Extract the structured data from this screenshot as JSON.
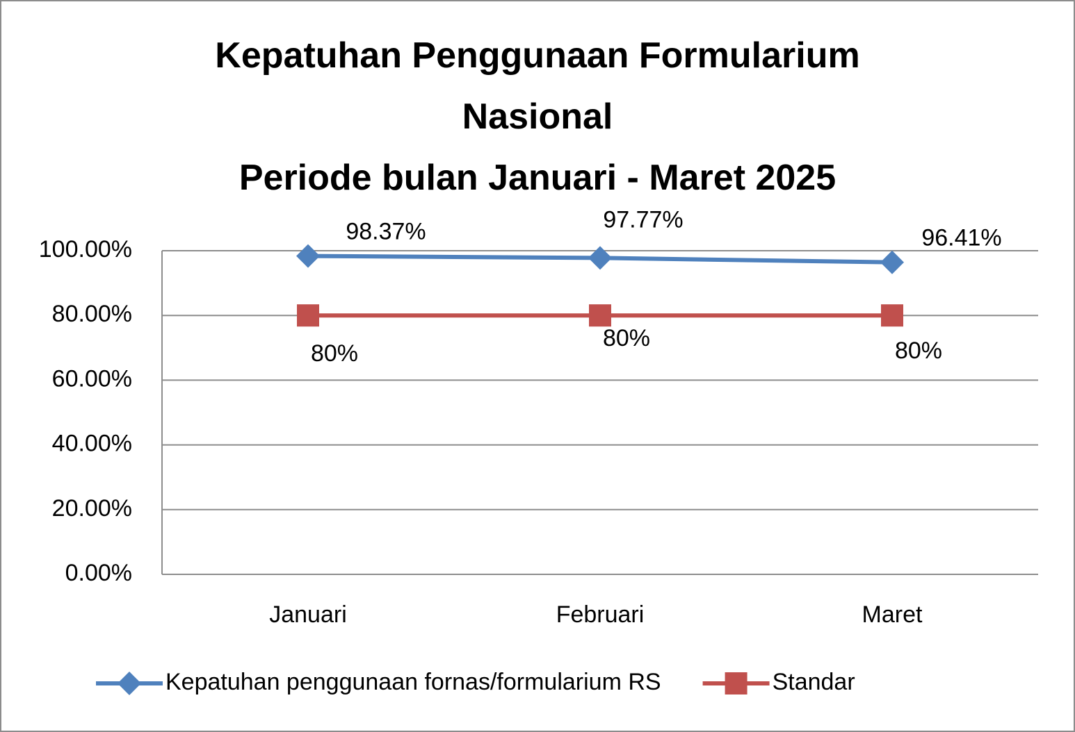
{
  "chart_data": {
    "type": "line",
    "title": "Kepatuhan Penggunaan Formularium Nasional",
    "subtitle": "Periode bulan Januari - Maret 2025",
    "categories": [
      "Januari",
      "Februari",
      "Maret"
    ],
    "series": [
      {
        "name": "Kepatuhan penggunaan fornas/formularium RS",
        "color": "#4f81bd",
        "marker": "diamond",
        "values": [
          98.37,
          97.77,
          96.41
        ],
        "value_labels": [
          "98.37%",
          "97.77%",
          "96.41%"
        ]
      },
      {
        "name": "Standar",
        "color": "#c0504d",
        "marker": "square",
        "values": [
          80,
          80,
          80
        ],
        "value_labels": [
          "80%",
          "80%",
          "80%"
        ]
      }
    ],
    "ylim": [
      0,
      100
    ],
    "yticks": [
      {
        "value": 0,
        "label": "0.00%"
      },
      {
        "value": 20,
        "label": "20.00%"
      },
      {
        "value": 40,
        "label": "40.00%"
      },
      {
        "value": 60,
        "label": "60.00%"
      },
      {
        "value": 80,
        "label": "80.00%"
      },
      {
        "value": 100,
        "label": "100.00%"
      }
    ],
    "grid": true,
    "legend": "bottom"
  }
}
